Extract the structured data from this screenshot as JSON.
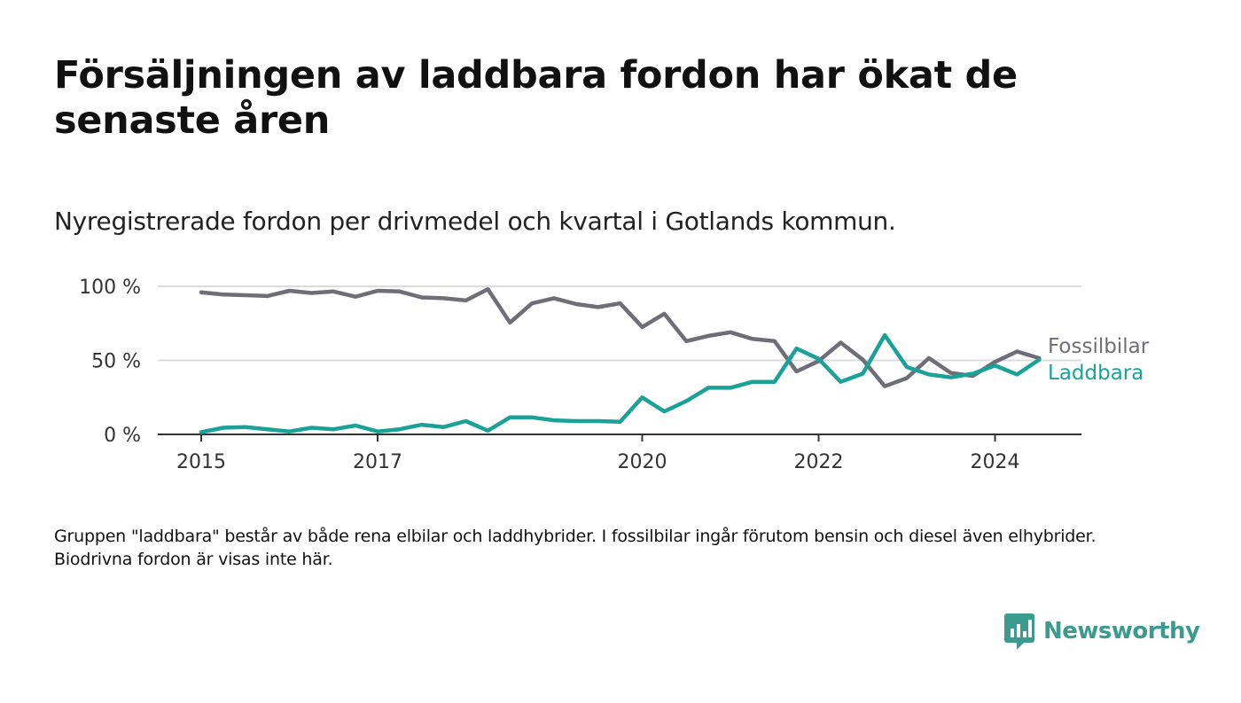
{
  "title": "Försäljningen av laddbara fordon har ökat de senaste åren",
  "subtitle": "Nyregistrerade fordon per drivmedel och kvartal i Gotlands kommun.",
  "note": "Gruppen \"laddbara\" består av både rena elbilar och laddhybrider. I fossilbilar ingår förutom bensin och diesel även elhybrider. Biodrivna fordon är visas inte här.",
  "brand": {
    "name": "Newsworthy",
    "icon": "newsworthy-logo-icon",
    "color": "#3a9b8e"
  },
  "chart_data": {
    "type": "line",
    "title": "",
    "xlabel": "",
    "ylabel": "",
    "x_unit": "year",
    "x": [
      2015.0,
      2015.25,
      2015.5,
      2015.75,
      2016.0,
      2016.25,
      2016.5,
      2016.75,
      2017.0,
      2017.25,
      2017.5,
      2017.75,
      2018.0,
      2018.25,
      2018.5,
      2018.75,
      2019.0,
      2019.25,
      2019.5,
      2019.75,
      2020.0,
      2020.25,
      2020.5,
      2020.75,
      2021.0,
      2021.25,
      2021.5,
      2021.75,
      2022.0,
      2022.25,
      2022.5,
      2022.75,
      2023.0,
      2023.25,
      2023.5,
      2023.75,
      2024.0,
      2024.25,
      2024.5
    ],
    "series": [
      {
        "name": "Fossilbilar",
        "color": "#6e6e78",
        "values": [
          96,
          94.5,
          94,
          93.5,
          97,
          95.5,
          96.5,
          93,
          97,
          96.5,
          92.5,
          92,
          90.5,
          98,
          75.5,
          88.5,
          92,
          88,
          86,
          88.5,
          72.5,
          81.5,
          63,
          66.5,
          69,
          64.5,
          63,
          42.5,
          49.5,
          62,
          50.5,
          32.5,
          38,
          51.5,
          41.5,
          39.5,
          49,
          56,
          51.5
        ]
      },
      {
        "name": "Laddbara",
        "color": "#1aa198",
        "values": [
          1.5,
          4.5,
          5,
          3.5,
          2,
          4.5,
          3.5,
          6,
          2,
          3.5,
          6.5,
          5,
          9,
          2.5,
          11.5,
          11.5,
          9.5,
          9,
          9,
          8.5,
          25,
          15.5,
          22.5,
          31.5,
          31.5,
          35.5,
          35.5,
          58,
          51,
          35.5,
          41,
          67,
          45.5,
          40.5,
          38.5,
          41,
          46.5,
          40.5,
          50.5
        ]
      }
    ],
    "x_ticks": [
      "2015",
      "2017",
      "2020",
      "2022",
      "2024"
    ],
    "y_ticks": [
      "0 %",
      "50 %",
      "100 %"
    ],
    "ylim": [
      0,
      100
    ],
    "grid": true,
    "legend": "direct labels at line ends"
  }
}
